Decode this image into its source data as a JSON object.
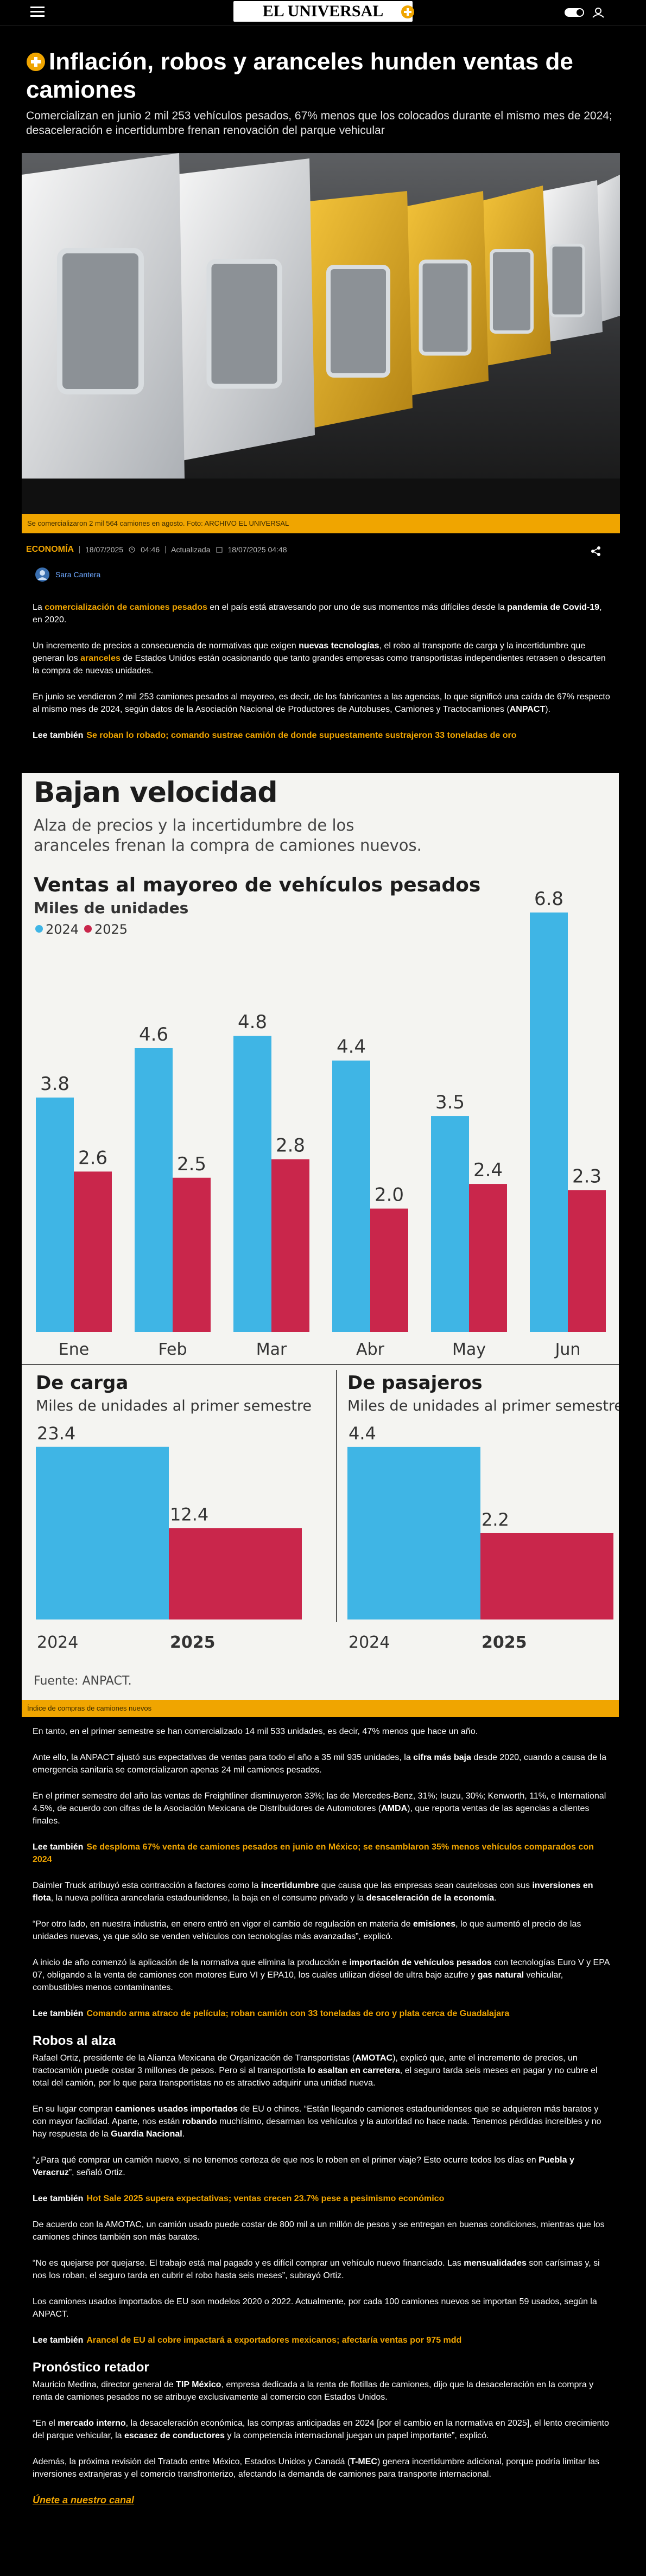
{
  "header": {
    "logo": "EL UNIVERSAL"
  },
  "article": {
    "title": "Inflación, robos y aranceles hunden ventas de camiones",
    "subtitle": "Comercializan en junio 2 mil 253 vehículos pesados, 67% menos que los colocados durante el mismo mes de 2024; desaceleración e incertidumbre frenan renovación del parque vehicular",
    "image_caption": "Se comercializaron 2 mil 564 camiones en agosto. Foto: ARCHIVO EL UNIVERSAL",
    "section": "ECONOMÍA",
    "date": "18/07/2025",
    "time": "04:46",
    "updated_label": "Actualizada",
    "updated": "18/07/2025 04:48",
    "author": "Sara Cantera",
    "body": [
      {
        "kind": "p",
        "runs": [
          {
            "text": "La "
          },
          {
            "text": "comercialización de camiones pesados",
            "style": "link"
          },
          {
            "text": " en el país está atravesando por uno de sus momentos más difíciles desde la "
          },
          {
            "text": "pandemia de Covid-19",
            "style": "bold"
          },
          {
            "text": ", en 2020."
          }
        ]
      },
      {
        "kind": "p",
        "runs": [
          {
            "text": "Un incremento de precios a consecuencia de normativas que exigen "
          },
          {
            "text": "nuevas tecnologías",
            "style": "bold"
          },
          {
            "text": ", el robo al transporte de carga y la incertidumbre que generan los "
          },
          {
            "text": "aranceles",
            "style": "link"
          },
          {
            "text": " de Estados Unidos están ocasionando que tanto grandes empresas como transportistas independientes retrasen o descarten la compra de nuevas unidades."
          }
        ]
      },
      {
        "kind": "p",
        "runs": [
          {
            "text": "En junio se vendieron 2 mil 253 camiones pesados al mayoreo, es decir, de los fabricantes a las agencias, lo que significó una caída de 67% respecto al mismo mes de 2024, según datos de la Asociación Nacional de Productores de Autobuses, Camiones y Tractocamiones ("
          },
          {
            "text": "ANPACT",
            "style": "bold"
          },
          {
            "text": ")."
          }
        ]
      },
      {
        "kind": "related",
        "label": "Lee también",
        "text": "Se roban lo robado; comando sustrae camión de donde supuestamente sustrajeron 33 toneladas de oro"
      }
    ],
    "body_after": [
      {
        "kind": "p",
        "runs": [
          {
            "text": "En tanto, en el primer semestre se han comercializado 14 mil 533 unidades, es decir, 47% menos que hace un año."
          }
        ]
      },
      {
        "kind": "p",
        "runs": [
          {
            "text": "Ante ello, la ANPACT ajustó sus expectativas de ventas para todo el año a 35 mil 935 unidades, la "
          },
          {
            "text": "cifra más baja",
            "style": "bold"
          },
          {
            "text": " desde 2020, cuando a causa de la emergencia sanitaria se comercializaron apenas 24 mil camiones pesados."
          }
        ]
      },
      {
        "kind": "p",
        "runs": [
          {
            "text": "En el primer semestre del año las ventas de Freightliner disminuyeron 33%; las de Mercedes-Benz, 31%; Isuzu, 30%; Kenworth, 11%, e International 4.5%, de acuerdo con cifras de la Asociación Mexicana de Distribuidores de Automotores ("
          },
          {
            "text": "AMDA",
            "style": "bold"
          },
          {
            "text": "), que reporta ventas de las agencias a clientes finales."
          }
        ]
      },
      {
        "kind": "related",
        "label": "Lee también",
        "text": "Se desploma 67% venta de camiones pesados en junio en México; se ensamblaron 35% menos vehículos comparados con 2024"
      },
      {
        "kind": "p",
        "runs": [
          {
            "text": "Daimler Truck atribuyó esta contracción a factores como la "
          },
          {
            "text": "incertidumbre",
            "style": "bold"
          },
          {
            "text": " que causa que las empresas sean cautelosas con sus "
          },
          {
            "text": "inversiones en flota",
            "style": "bold"
          },
          {
            "text": ", la nueva política arancelaria estadounidense, la baja en el consumo privado y la "
          },
          {
            "text": "desaceleración de la economía",
            "style": "bold"
          },
          {
            "text": "."
          }
        ]
      },
      {
        "kind": "p",
        "runs": [
          {
            "text": "“Por otro lado, en nuestra industria, en enero entró en vigor el cambio de regulación en materia de "
          },
          {
            "text": "emisiones",
            "style": "bold"
          },
          {
            "text": ", lo que aumentó el precio de las unidades nuevas, ya que sólo se venden vehículos con tecnologías más avanzadas”, explicó."
          }
        ]
      },
      {
        "kind": "p",
        "runs": [
          {
            "text": "A inicio de año comenzó la aplicación de la normativa que elimina la producción e "
          },
          {
            "text": "importación de vehículos pesados",
            "style": "bold"
          },
          {
            "text": " con tecnologías Euro V y EPA 07, obligando a la venta de camiones con motores Euro VI y EPA10, los cuales utilizan diésel de ultra bajo azufre y "
          },
          {
            "text": "gas natural",
            "style": "bold"
          },
          {
            "text": " vehicular, combustibles menos contaminantes."
          }
        ]
      },
      {
        "kind": "related",
        "label": "Lee también",
        "text": "Comando arma atraco de película; roban camión con 33 toneladas de oro y plata cerca de Guadalajara"
      },
      {
        "kind": "h2",
        "text": "Robos al alza"
      },
      {
        "kind": "p",
        "runs": [
          {
            "text": "Rafael Ortiz, presidente de la Alianza Mexicana de Organización de Transportistas ("
          },
          {
            "text": "AMOTAC",
            "style": "bold"
          },
          {
            "text": "), explicó que, ante el incremento de precios, un tractocamión puede costar 3 millones de pesos. Pero si al transportista "
          },
          {
            "text": "lo asaltan en carretera",
            "style": "bold"
          },
          {
            "text": ", el seguro tarda seis meses en pagar y no cubre el total del camión, por lo que para transportistas no es atractivo adquirir una unidad nueva."
          }
        ]
      },
      {
        "kind": "p",
        "runs": [
          {
            "text": "En su lugar compran "
          },
          {
            "text": "camiones usados importados",
            "style": "bold"
          },
          {
            "text": " de EU o chinos. “Están llegando camiones estadounidenses que se adquieren más baratos y con mayor facilidad. Aparte, nos están "
          },
          {
            "text": "robando",
            "style": "bold"
          },
          {
            "text": " muchísimo, desarman los vehículos y la autoridad no hace nada. Tenemos pérdidas increíbles y no hay respuesta de la "
          },
          {
            "text": "Guardia Nacional",
            "style": "bold"
          },
          {
            "text": "."
          }
        ]
      },
      {
        "kind": "p",
        "runs": [
          {
            "text": "“¿Para qué comprar un camión nuevo, si no tenemos certeza de que nos lo roben en el primer viaje? Esto ocurre todos los días en "
          },
          {
            "text": "Puebla y Veracruz",
            "style": "bold"
          },
          {
            "text": "”, señaló Ortiz."
          }
        ]
      },
      {
        "kind": "related",
        "label": "Lee también",
        "text": "Hot Sale 2025 supera expectativas; ventas crecen 23.7% pese a pesimismo económico"
      },
      {
        "kind": "p",
        "runs": [
          {
            "text": "De acuerdo con la AMOTAC, un camión usado puede costar de 800 mil a un millón de pesos y se entregan en buenas condiciones, mientras que los camiones chinos también son más baratos."
          }
        ]
      },
      {
        "kind": "p",
        "runs": [
          {
            "text": "“No es quejarse por quejarse. El trabajo está mal pagado y es difícil comprar un vehículo nuevo financiado. Las "
          },
          {
            "text": "mensualidades",
            "style": "bold"
          },
          {
            "text": " son carísimas y, si nos los roban, el seguro tarda en cubrir el robo hasta seis meses”, subrayó Ortiz."
          }
        ]
      },
      {
        "kind": "p",
        "runs": [
          {
            "text": "Los camiones usados importados de EU son modelos 2020 o 2022. Actualmente, por cada 100 camiones nuevos se importan 59 usados, según la ANPACT."
          }
        ]
      },
      {
        "kind": "related",
        "label": "Lee también",
        "text": "Arancel de EU al cobre impactará a exportadores mexicanos; afectaría ventas por 975 mdd"
      },
      {
        "kind": "h2",
        "text": "Pronóstico retador"
      },
      {
        "kind": "p",
        "runs": [
          {
            "text": "Mauricio Medina, director general de "
          },
          {
            "text": "TIP México",
            "style": "bold"
          },
          {
            "text": ", empresa dedicada a la renta de flotillas de camiones, dijo que la desaceleración en la compra y renta de camiones pesados no se atribuye exclusivamente al comercio con Estados Unidos."
          }
        ]
      },
      {
        "kind": "p",
        "runs": [
          {
            "text": "“En el "
          },
          {
            "text": "mercado interno",
            "style": "bold"
          },
          {
            "text": ", la desaceleración económica, las compras anticipadas en 2024 [por el cambio en la normativa en 2025], el lento crecimiento del parque vehicular, la "
          },
          {
            "text": "escasez de conductores",
            "style": "bold"
          },
          {
            "text": " y la competencia internacional juegan un papel importante”, explicó."
          }
        ]
      },
      {
        "kind": "p",
        "runs": [
          {
            "text": "Además, la próxima revisión del Tratado entre México, Estados Unidos y Canadá ("
          },
          {
            "text": "T-MEC",
            "style": "bold"
          },
          {
            "text": ") genera incertidumbre adicional, porque podría limitar las inversiones extranjeras y el comercio transfronterizo, afectando la demanda de camiones para transporte internacional."
          }
        ]
      },
      {
        "kind": "cta",
        "text": "Únete a nuestro canal"
      }
    ]
  },
  "infographic": {
    "title": "Bajan velocidad",
    "subtitle": "Alza de precios y la incertidumbre de los aranceles frenan la compra de camiones nuevos.",
    "source": "Fuente: ANPACT.",
    "caption": "Índice de compras de camiones nuevos",
    "monthly": {
      "type": "bar",
      "title": "Ventas al mayoreo de vehículos pesados",
      "subtitle": "Miles de unidades",
      "categories": [
        "Ene",
        "Feb",
        "Mar",
        "Abr",
        "May",
        "Jun"
      ],
      "series": [
        {
          "name": "2024",
          "color": "#3fb5e5",
          "values": [
            3.8,
            4.6,
            4.8,
            4.4,
            3.5,
            6.8
          ]
        },
        {
          "name": "2025",
          "color": "#c9264b",
          "values": [
            2.6,
            2.5,
            2.8,
            2.0,
            2.4,
            2.3
          ],
          "value_labels": [
            "2.6",
            "2.5",
            "2.8",
            "2.0",
            "2.4",
            "2.3"
          ]
        }
      ]
    },
    "panels": [
      {
        "type": "bar",
        "title": "De carga",
        "subtitle": "Miles de unidades al primer semestre",
        "categories": [
          "2024",
          "2025"
        ],
        "values": [
          23.4,
          12.4
        ],
        "colors": [
          "#3fb5e5",
          "#c9264b"
        ]
      },
      {
        "type": "bar",
        "title": "De pasajeros",
        "subtitle": "Miles de unidades al primer semestre",
        "categories": [
          "2024",
          "2025"
        ],
        "values": [
          4.4,
          2.2
        ],
        "colors": [
          "#3fb5e5",
          "#c9264b"
        ]
      }
    ]
  }
}
